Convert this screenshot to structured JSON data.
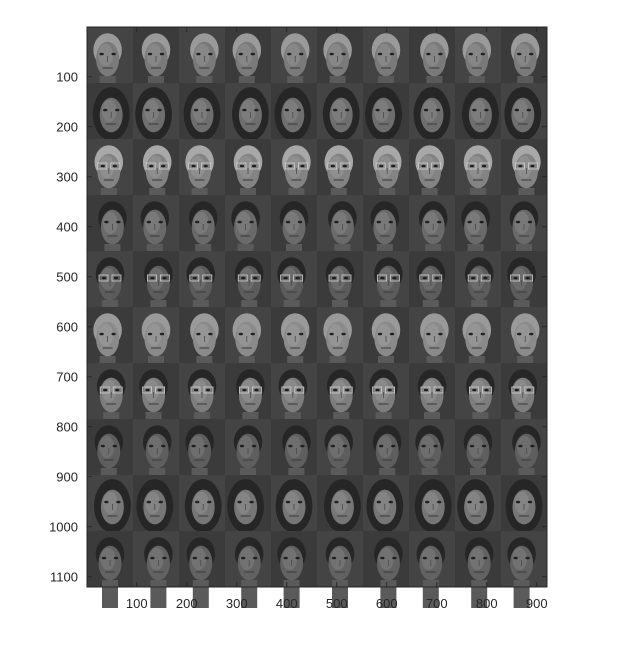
{
  "axes": {
    "x_ticks": [
      "100",
      "200",
      "300",
      "400",
      "500",
      "600",
      "700",
      "800",
      "900"
    ],
    "y_ticks": [
      "100",
      "200",
      "300",
      "400",
      "500",
      "600",
      "700",
      "800",
      "900",
      "1000",
      "1100"
    ],
    "xlim": [
      0.5,
      920.5
    ],
    "ylim": [
      0.5,
      1120.5
    ]
  },
  "montage": {
    "rows": 10,
    "cols": 10,
    "tile_width": 92,
    "tile_height": 112,
    "row_subjects": [
      {
        "hair": "short-light",
        "glasses": false,
        "tone": "#7a7a7a"
      },
      {
        "hair": "long-dark",
        "glasses": false,
        "tone": "#6e6e6e"
      },
      {
        "hair": "short-gray",
        "glasses": true,
        "tone": "#838383"
      },
      {
        "hair": "short-dark",
        "glasses": false,
        "tone": "#6a6a6a"
      },
      {
        "hair": "short-dark",
        "glasses": true,
        "tone": "#5c5c5c"
      },
      {
        "hair": "short-light",
        "glasses": false,
        "tone": "#8a8a8a"
      },
      {
        "hair": "curly-dark",
        "glasses": true,
        "tone": "#7d7d7d"
      },
      {
        "hair": "short-dark",
        "glasses": false,
        "tone": "#5e5e5e"
      },
      {
        "hair": "long-dark",
        "glasses": false,
        "tone": "#767676"
      },
      {
        "hair": "short-dark",
        "glasses": false,
        "tone": "#626262"
      }
    ]
  }
}
